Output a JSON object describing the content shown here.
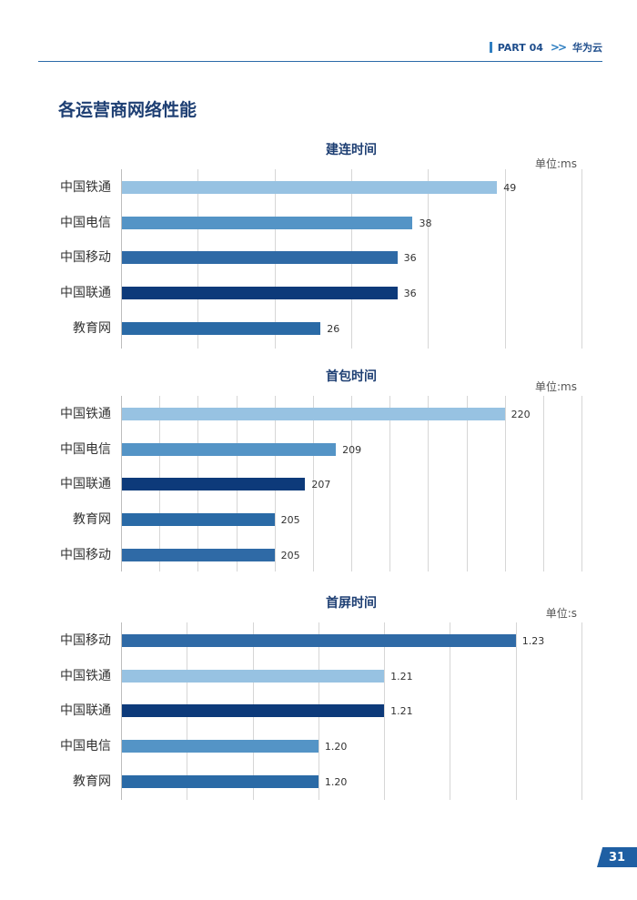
{
  "header": {
    "part": "PART 04",
    "brand": "华为云"
  },
  "page_title": "各运营商网络性能",
  "page_number": "31",
  "colors": {
    "中国铁通": "#97c2e2",
    "中国电信": "#5494c6",
    "中国移动": "#2f6aa6",
    "中国联通": "#0d3a7a",
    "教育网": "#2a6aa6"
  },
  "chart_data": [
    {
      "type": "bar",
      "orientation": "horizontal",
      "title": "建连时间",
      "unit": "单位:ms",
      "categories": [
        "中国铁通",
        "中国电信",
        "中国移动",
        "中国联通",
        "教育网"
      ],
      "values": [
        49,
        38,
        36,
        36,
        26
      ],
      "labels": [
        "49",
        "38",
        "36",
        "36",
        "26"
      ],
      "xlim": [
        0,
        60
      ],
      "gridlines": [
        10,
        20,
        30,
        40,
        50,
        60
      ]
    },
    {
      "type": "bar",
      "orientation": "horizontal",
      "title": "首包时间",
      "unit": "单位:ms",
      "categories": [
        "中国铁通",
        "中国电信",
        "中国联通",
        "教育网",
        "中国移动"
      ],
      "values": [
        220,
        209,
        207,
        205,
        205
      ],
      "labels": [
        "220",
        "209",
        "207",
        "205",
        "205"
      ],
      "xlim": [
        195,
        225
      ],
      "gridlines": [
        197.5,
        200,
        202.5,
        205,
        207.5,
        210,
        212.5,
        215,
        217.5,
        220,
        222.5,
        225
      ]
    },
    {
      "type": "bar",
      "orientation": "horizontal",
      "title": "首屏时间",
      "unit": "单位:s",
      "categories": [
        "中国移动",
        "中国铁通",
        "中国联通",
        "中国电信",
        "教育网"
      ],
      "values": [
        1.23,
        1.21,
        1.21,
        1.2,
        1.2
      ],
      "labels": [
        "1.23",
        "1.21",
        "1.21",
        "1.20",
        "1.20"
      ],
      "xlim": [
        1.17,
        1.24
      ],
      "gridlines": [
        1.18,
        1.19,
        1.2,
        1.21,
        1.22,
        1.23,
        1.24
      ]
    }
  ]
}
